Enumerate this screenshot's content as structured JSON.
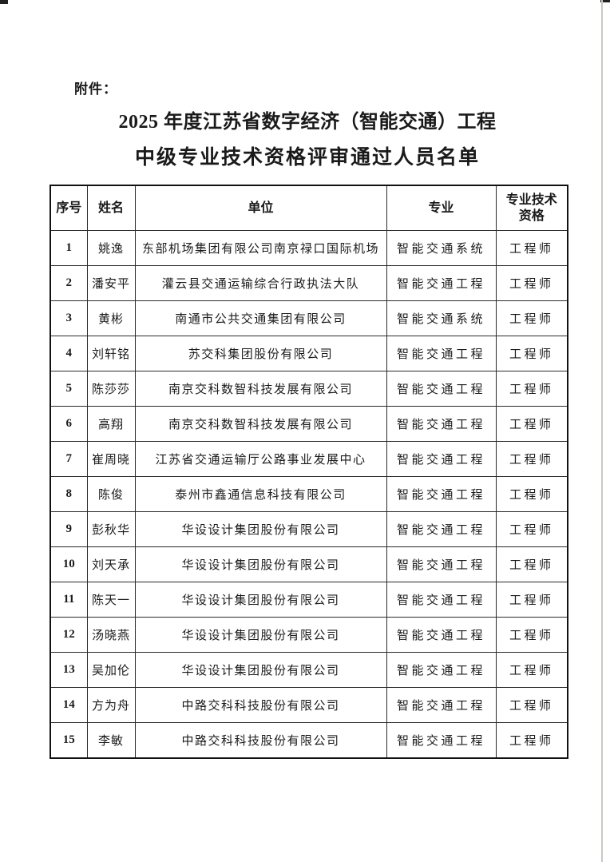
{
  "page": {
    "attachment_label": "附件：",
    "title_line1": "2025 年度江苏省数字经济（智能交通）工程",
    "title_line2": "中级专业技术资格评审通过人员名单"
  },
  "table": {
    "headers": [
      "序号",
      "姓名",
      "单位",
      "专业",
      "专业技术\n资格"
    ],
    "rows": [
      {
        "no": "1",
        "name": "姚逸",
        "org": "东部机场集团有限公司南京禄口国际机场",
        "major": "智能交通系统",
        "qual": "工程师"
      },
      {
        "no": "2",
        "name": "潘安平",
        "org": "灌云县交通运输综合行政执法大队",
        "major": "智能交通工程",
        "qual": "工程师"
      },
      {
        "no": "3",
        "name": "黄彬",
        "org": "南通市公共交通集团有限公司",
        "major": "智能交通系统",
        "qual": "工程师"
      },
      {
        "no": "4",
        "name": "刘轩铭",
        "org": "苏交科集团股份有限公司",
        "major": "智能交通工程",
        "qual": "工程师"
      },
      {
        "no": "5",
        "name": "陈莎莎",
        "org": "南京交科数智科技发展有限公司",
        "major": "智能交通工程",
        "qual": "工程师"
      },
      {
        "no": "6",
        "name": "高翔",
        "org": "南京交科数智科技发展有限公司",
        "major": "智能交通工程",
        "qual": "工程师"
      },
      {
        "no": "7",
        "name": "崔周晓",
        "org": "江苏省交通运输厅公路事业发展中心",
        "major": "智能交通工程",
        "qual": "工程师"
      },
      {
        "no": "8",
        "name": "陈俊",
        "org": "泰州市鑫通信息科技有限公司",
        "major": "智能交通工程",
        "qual": "工程师"
      },
      {
        "no": "9",
        "name": "彭秋华",
        "org": "华设设计集团股份有限公司",
        "major": "智能交通工程",
        "qual": "工程师"
      },
      {
        "no": "10",
        "name": "刘天承",
        "org": "华设设计集团股份有限公司",
        "major": "智能交通工程",
        "qual": "工程师"
      },
      {
        "no": "11",
        "name": "陈天一",
        "org": "华设设计集团股份有限公司",
        "major": "智能交通工程",
        "qual": "工程师"
      },
      {
        "no": "12",
        "name": "汤晓燕",
        "org": "华设设计集团股份有限公司",
        "major": "智能交通工程",
        "qual": "工程师"
      },
      {
        "no": "13",
        "name": "吴加伦",
        "org": "华设设计集团股份有限公司",
        "major": "智能交通工程",
        "qual": "工程师"
      },
      {
        "no": "14",
        "name": "方为舟",
        "org": "中路交科科技股份有限公司",
        "major": "智能交通工程",
        "qual": "工程师"
      },
      {
        "no": "15",
        "name": "李敏",
        "org": "中路交科科技股份有限公司",
        "major": "智能交通工程",
        "qual": "工程师"
      }
    ]
  },
  "colors": {
    "text": "#1a1a1a",
    "table_border": "#2b2b2b",
    "page_edge_line": "#c9c9c3"
  }
}
